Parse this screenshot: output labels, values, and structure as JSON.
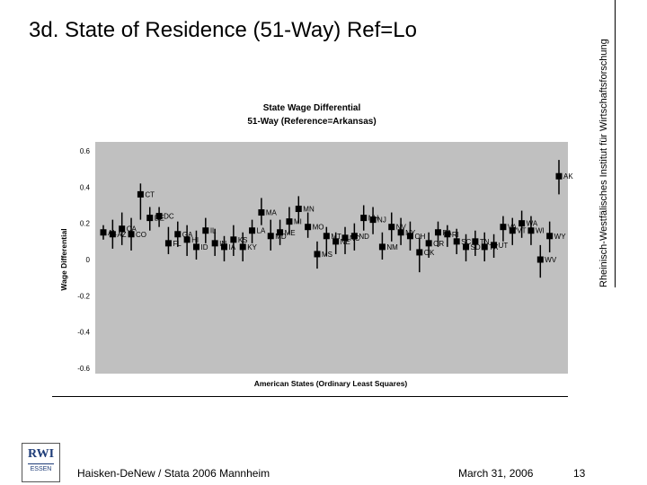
{
  "slide": {
    "title": "3d. State of Residence (51-Way) Ref=Lo",
    "side_text": "Rheinisch-Westfälisches Institut für Wirtschaftsforschung",
    "footer_left": "Haisken-DeNew / Stata 2006 Mannheim",
    "footer_date": "March 31, 2006",
    "page_number": "13",
    "logo_text": "RWI",
    "logo_subtext": "ESSEN"
  },
  "chart_data": {
    "type": "scatter",
    "title": "State Wage Differential",
    "subtitle": "51-Way (Reference=Arkansas)",
    "xlabel": "American States (Ordinary Least Squares)",
    "ylabel": "Wage Differential",
    "ylim": [
      -0.6,
      0.6
    ],
    "yticks": [
      "0.6",
      "0.4",
      "0.2",
      "0",
      "-0.2",
      "-0.4",
      "-0.6"
    ],
    "ytick_values": [
      0.6,
      0.4,
      0.2,
      0,
      -0.2,
      -0.4,
      -0.6
    ],
    "grid": false,
    "plot_background": "#c0c0c0",
    "marker_color": "#000000",
    "points": [
      {
        "label": "AL",
        "y": 0.15,
        "lo": 0.11,
        "hi": 0.19
      },
      {
        "label": "AZ",
        "y": 0.14,
        "lo": 0.06,
        "hi": 0.22
      },
      {
        "label": "CA",
        "y": 0.17,
        "lo": 0.08,
        "hi": 0.26
      },
      {
        "label": "CO",
        "y": 0.14,
        "lo": 0.05,
        "hi": 0.23
      },
      {
        "label": "CT",
        "y": 0.36,
        "lo": 0.22,
        "hi": 0.42
      },
      {
        "label": "DE",
        "y": 0.23,
        "lo": 0.16,
        "hi": 0.29
      },
      {
        "label": "DC",
        "y": 0.24,
        "lo": 0.18,
        "hi": 0.29
      },
      {
        "label": "FL",
        "y": 0.09,
        "lo": 0.03,
        "hi": 0.18
      },
      {
        "label": "GA",
        "y": 0.14,
        "lo": 0.07,
        "hi": 0.21
      },
      {
        "label": "HI",
        "y": 0.11,
        "lo": 0.02,
        "hi": 0.19
      },
      {
        "label": "ID",
        "y": 0.07,
        "lo": 0.0,
        "hi": 0.16
      },
      {
        "label": "IL",
        "y": 0.16,
        "lo": 0.09,
        "hi": 0.23
      },
      {
        "label": "IN",
        "y": 0.09,
        "lo": 0.02,
        "hi": 0.17
      },
      {
        "label": "IA",
        "y": 0.07,
        "lo": -0.01,
        "hi": 0.13
      },
      {
        "label": "KS",
        "y": 0.11,
        "lo": 0.02,
        "hi": 0.19
      },
      {
        "label": "KY",
        "y": 0.07,
        "lo": -0.01,
        "hi": 0.15
      },
      {
        "label": "LA",
        "y": 0.16,
        "lo": 0.09,
        "hi": 0.22
      },
      {
        "label": "MA",
        "y": 0.26,
        "lo": 0.19,
        "hi": 0.34
      },
      {
        "label": "MD",
        "y": 0.13,
        "lo": 0.05,
        "hi": 0.22
      },
      {
        "label": "ME",
        "y": 0.15,
        "lo": 0.08,
        "hi": 0.22
      },
      {
        "label": "MI",
        "y": 0.21,
        "lo": 0.14,
        "hi": 0.29
      },
      {
        "label": "MN",
        "y": 0.28,
        "lo": 0.2,
        "hi": 0.35
      },
      {
        "label": "MO",
        "y": 0.18,
        "lo": 0.12,
        "hi": 0.26
      },
      {
        "label": "MS",
        "y": 0.03,
        "lo": -0.05,
        "hi": 0.1
      },
      {
        "label": "MT",
        "y": 0.13,
        "lo": 0.02,
        "hi": 0.18
      },
      {
        "label": "NE",
        "y": 0.1,
        "lo": 0.03,
        "hi": 0.15
      },
      {
        "label": "NC",
        "y": 0.12,
        "lo": 0.03,
        "hi": 0.18
      },
      {
        "label": "ND",
        "y": 0.13,
        "lo": 0.05,
        "hi": 0.2
      },
      {
        "label": "NH",
        "y": 0.23,
        "lo": 0.16,
        "hi": 0.3
      },
      {
        "label": "NJ",
        "y": 0.22,
        "lo": 0.14,
        "hi": 0.29
      },
      {
        "label": "NM",
        "y": 0.07,
        "lo": 0.0,
        "hi": 0.15
      },
      {
        "label": "NV",
        "y": 0.18,
        "lo": 0.1,
        "hi": 0.26
      },
      {
        "label": "NY",
        "y": 0.15,
        "lo": 0.08,
        "hi": 0.23
      },
      {
        "label": "OH",
        "y": 0.13,
        "lo": 0.05,
        "hi": 0.21
      },
      {
        "label": "OK",
        "y": 0.04,
        "lo": -0.07,
        "hi": 0.12
      },
      {
        "label": "OR",
        "y": 0.09,
        "lo": 0.01,
        "hi": 0.15
      },
      {
        "label": "PA",
        "y": 0.15,
        "lo": 0.07,
        "hi": 0.21
      },
      {
        "label": "RI",
        "y": 0.14,
        "lo": 0.07,
        "hi": 0.19
      },
      {
        "label": "SC",
        "y": 0.1,
        "lo": 0.03,
        "hi": 0.17
      },
      {
        "label": "SD",
        "y": 0.07,
        "lo": -0.01,
        "hi": 0.14
      },
      {
        "label": "TN",
        "y": 0.1,
        "lo": 0.02,
        "hi": 0.16
      },
      {
        "label": "TX",
        "y": 0.07,
        "lo": -0.01,
        "hi": 0.15
      },
      {
        "label": "UT",
        "y": 0.08,
        "lo": 0.01,
        "hi": 0.14
      },
      {
        "label": "VA",
        "y": 0.18,
        "lo": 0.1,
        "hi": 0.24
      },
      {
        "label": "VT",
        "y": 0.16,
        "lo": 0.08,
        "hi": 0.23
      },
      {
        "label": "WA",
        "y": 0.2,
        "lo": 0.12,
        "hi": 0.27
      },
      {
        "label": "WI",
        "y": 0.16,
        "lo": 0.08,
        "hi": 0.24
      },
      {
        "label": "WV",
        "y": 0.0,
        "lo": -0.1,
        "hi": 0.08
      },
      {
        "label": "WY",
        "y": 0.13,
        "lo": 0.04,
        "hi": 0.21
      },
      {
        "label": "AK",
        "y": 0.46,
        "lo": 0.36,
        "hi": 0.55
      }
    ]
  }
}
